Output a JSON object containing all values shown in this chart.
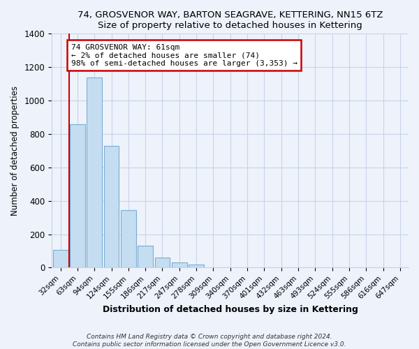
{
  "title_main": "74, GROSVENOR WAY, BARTON SEAGRAVE, KETTERING, NN15 6TZ",
  "title_sub": "Size of property relative to detached houses in Kettering",
  "xlabel": "Distribution of detached houses by size in Kettering",
  "ylabel": "Number of detached properties",
  "bar_labels": [
    "32sqm",
    "63sqm",
    "94sqm",
    "124sqm",
    "155sqm",
    "186sqm",
    "217sqm",
    "247sqm",
    "278sqm",
    "309sqm",
    "340sqm",
    "370sqm",
    "401sqm",
    "432sqm",
    "463sqm",
    "493sqm",
    "524sqm",
    "555sqm",
    "586sqm",
    "616sqm",
    "647sqm"
  ],
  "bar_values": [
    105,
    860,
    1140,
    730,
    345,
    130,
    62,
    32,
    18,
    0,
    0,
    0,
    0,
    0,
    0,
    0,
    0,
    0,
    0,
    0,
    0
  ],
  "bar_color": "#c5ddf0",
  "bar_edge_color": "#7aadd4",
  "vline_x_index": 1.0,
  "annotation_title": "74 GROSVENOR WAY: 61sqm",
  "annotation_line1": "← 2% of detached houses are smaller (74)",
  "annotation_line2": "98% of semi-detached houses are larger (3,353) →",
  "annotation_box_color": "#ffffff",
  "annotation_box_edge": "#cc0000",
  "vline_color": "#cc0000",
  "ylim": [
    0,
    1400
  ],
  "yticks": [
    0,
    200,
    400,
    600,
    800,
    1000,
    1200,
    1400
  ],
  "footer1": "Contains HM Land Registry data © Crown copyright and database right 2024.",
  "footer2": "Contains public sector information licensed under the Open Government Licence v3.0.",
  "bg_color": "#eef2fb",
  "plot_bg_color": "#eef2fb",
  "grid_color": "#c8d4e8"
}
